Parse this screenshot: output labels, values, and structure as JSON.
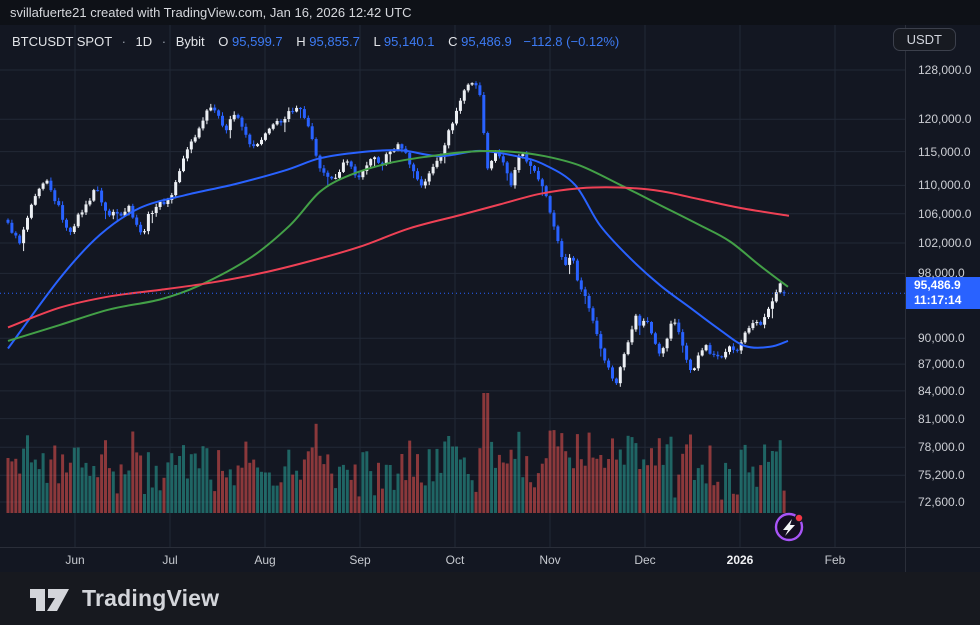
{
  "header": {
    "attribution": "svillafuerte21 created with TradingView.com, Jan 16, 2026 12:42 UTC"
  },
  "legend": {
    "symbol": "BTCUSDT SPOT",
    "separator": "·",
    "interval": "1D",
    "exchange": "Bybit",
    "o_label": "O",
    "o_value": "95,599.7",
    "h_label": "H",
    "h_value": "95,855.7",
    "l_label": "L",
    "l_value": "95,140.1",
    "c_label": "C",
    "c_value": "95,486.9",
    "change": "−112.8 (−0.12%)"
  },
  "toolbar": {
    "currency_button": "USDT"
  },
  "price_scale": {
    "current": {
      "price": "95,486.9",
      "countdown": "11:17:14"
    },
    "ticks": [
      {
        "value": 128000,
        "label": "128,000.0"
      },
      {
        "value": 120000,
        "label": "120,000.0"
      },
      {
        "value": 115000,
        "label": "115,000.0"
      },
      {
        "value": 110000,
        "label": "110,000.0"
      },
      {
        "value": 106000,
        "label": "106,000.0"
      },
      {
        "value": 102000,
        "label": "102,000.0"
      },
      {
        "value": 98000,
        "label": "98,000.0"
      },
      {
        "value": 90000,
        "label": "90,000.0"
      },
      {
        "value": 87000,
        "label": "87,000.0"
      },
      {
        "value": 84000,
        "label": "84,000.0"
      },
      {
        "value": 81000,
        "label": "81,000.0"
      },
      {
        "value": 78000,
        "label": "78,000.0"
      },
      {
        "value": 75200,
        "label": "75,200.0"
      },
      {
        "value": 72600,
        "label": "72,600.0"
      }
    ]
  },
  "time_scale": {
    "months": [
      {
        "label": "Jun"
      },
      {
        "label": "Jul"
      },
      {
        "label": "Aug"
      },
      {
        "label": "Sep"
      },
      {
        "label": "Oct"
      },
      {
        "label": "Nov"
      },
      {
        "label": "Dec"
      },
      {
        "label": "2026",
        "emphasis": true
      },
      {
        "label": "Feb"
      }
    ]
  },
  "footer": {
    "brand": "TradingView"
  },
  "colors": {
    "candle_up": "#eceff4",
    "candle_down": "#2962ff",
    "ma_fast": "#2962ff",
    "ma_mid": "#43a047",
    "ma_slow": "#ef4155",
    "volume_up": "rgba(42,166,154,0.55)",
    "volume_down": "rgba(239,83,80,0.55)",
    "grid": "#222836",
    "price_line": "#2962ff",
    "label_bg": "#2962ff"
  },
  "chart_data": {
    "type": "candlestick",
    "symbol": "BTCUSDT",
    "market": "SPOT",
    "exchange": "Bybit",
    "interval": "1D",
    "quote_currency": "USDT",
    "scale": "logarithmic",
    "current_ohlc": {
      "open": 95599.7,
      "high": 95855.7,
      "low": 95140.1,
      "close": 95486.9,
      "change": -112.8,
      "change_pct": -0.12
    },
    "price_line": {
      "value": 95486.9,
      "style": "dotted"
    },
    "countdown_to_bar_close": "11:17:14",
    "y_axis_ticks": [
      128000,
      120000,
      115000,
      110000,
      106000,
      102000,
      98000,
      90000,
      87000,
      84000,
      81000,
      78000,
      75200,
      72600
    ],
    "x_axis_months": [
      "Jun",
      "Jul",
      "Aug",
      "Sep",
      "Oct",
      "Nov",
      "Dec",
      "2026",
      "Feb"
    ],
    "price_path_thousands": [
      [
        8,
        104.5
      ],
      [
        14,
        103.2
      ],
      [
        20,
        101.8
      ],
      [
        26,
        104.8
      ],
      [
        33,
        107.5
      ],
      [
        40,
        109.5
      ],
      [
        47,
        110.5
      ],
      [
        53,
        108.5
      ],
      [
        60,
        106.5
      ],
      [
        68,
        103.2
      ],
      [
        74,
        104.5
      ],
      [
        80,
        106
      ],
      [
        88,
        107.5
      ],
      [
        95,
        109.8
      ],
      [
        101,
        108
      ],
      [
        108,
        105.5
      ],
      [
        115,
        106.5
      ],
      [
        122,
        106
      ],
      [
        129,
        107
      ],
      [
        136,
        104.8
      ],
      [
        142,
        102.8
      ],
      [
        148,
        105.5
      ],
      [
        155,
        107
      ],
      [
        162,
        107.5
      ],
      [
        170,
        108
      ],
      [
        177,
        111
      ],
      [
        184,
        114
      ],
      [
        191,
        116.5
      ],
      [
        198,
        118
      ],
      [
        205,
        121
      ],
      [
        212,
        122.5
      ],
      [
        219,
        120
      ],
      [
        226,
        118.5
      ],
      [
        233,
        121
      ],
      [
        240,
        119.5
      ],
      [
        247,
        117
      ],
      [
        254,
        115.5
      ],
      [
        261,
        116.5
      ],
      [
        268,
        118
      ],
      [
        275,
        120
      ],
      [
        282,
        119
      ],
      [
        289,
        121
      ],
      [
        296,
        122.2
      ],
      [
        303,
        121
      ],
      [
        310,
        118
      ],
      [
        317,
        113.5
      ],
      [
        324,
        111.5
      ],
      [
        331,
        110.5
      ],
      [
        338,
        112
      ],
      [
        345,
        113.5
      ],
      [
        352,
        112.5
      ],
      [
        359,
        111
      ],
      [
        366,
        113
      ],
      [
        373,
        114
      ],
      [
        380,
        113
      ],
      [
        387,
        114.5
      ],
      [
        394,
        115.5
      ],
      [
        401,
        116
      ],
      [
        408,
        114
      ],
      [
        415,
        111.5
      ],
      [
        422,
        110
      ],
      [
        429,
        111.5
      ],
      [
        436,
        113.5
      ],
      [
        443,
        115.5
      ],
      [
        450,
        118.5
      ],
      [
        457,
        121.5
      ],
      [
        464,
        124.5
      ],
      [
        470,
        126.3
      ],
      [
        476,
        125.2
      ],
      [
        481,
        124
      ],
      [
        486,
        112.5
      ],
      [
        491,
        113.5
      ],
      [
        496,
        115.2
      ],
      [
        501,
        114
      ],
      [
        506,
        112
      ],
      [
        511,
        110
      ],
      [
        516,
        112.5
      ],
      [
        521,
        115
      ],
      [
        526,
        114
      ],
      [
        531,
        112.5
      ],
      [
        536,
        111.5
      ],
      [
        541,
        110.5
      ],
      [
        546,
        108.8
      ],
      [
        551,
        106
      ],
      [
        556,
        103
      ],
      [
        561,
        100.5
      ],
      [
        566,
        99
      ],
      [
        571,
        100.8
      ],
      [
        576,
        98
      ],
      [
        581,
        96
      ],
      [
        586,
        95
      ],
      [
        591,
        93
      ],
      [
        596,
        91
      ],
      [
        601,
        88.8
      ],
      [
        606,
        87.3
      ],
      [
        611,
        85.8
      ],
      [
        616,
        84.8
      ],
      [
        621,
        86.8
      ],
      [
        626,
        89
      ],
      [
        631,
        91
      ],
      [
        636,
        92.6
      ],
      [
        641,
        91.4
      ],
      [
        646,
        92.5
      ],
      [
        651,
        91
      ],
      [
        656,
        89.4
      ],
      [
        661,
        88
      ],
      [
        666,
        89.6
      ],
      [
        671,
        91.6
      ],
      [
        676,
        92
      ],
      [
        681,
        90
      ],
      [
        686,
        87.5
      ],
      [
        691,
        86.3
      ],
      [
        696,
        87
      ],
      [
        701,
        88.6
      ],
      [
        706,
        89
      ],
      [
        711,
        88
      ],
      [
        716,
        88.6
      ],
      [
        721,
        87.5
      ],
      [
        726,
        88.6
      ],
      [
        731,
        89
      ],
      [
        736,
        88.3
      ],
      [
        741,
        89.6
      ],
      [
        746,
        90.6
      ],
      [
        751,
        91.6
      ],
      [
        756,
        92
      ],
      [
        761,
        91.4
      ],
      [
        766,
        92.6
      ],
      [
        771,
        94
      ],
      [
        776,
        95.6
      ],
      [
        781,
        97.2
      ],
      [
        784,
        95.49
      ]
    ],
    "moving_averages": [
      {
        "name": "ma-fast-blue",
        "color": "#2962ff",
        "points": [
          [
            8,
            88.8
          ],
          [
            60,
            97.4
          ],
          [
            100,
            103.1
          ],
          [
            140,
            106.8
          ],
          [
            185,
            108.6
          ],
          [
            235,
            110.2
          ],
          [
            285,
            112.2
          ],
          [
            320,
            114.0
          ],
          [
            360,
            114.9
          ],
          [
            400,
            115.2
          ],
          [
            440,
            114.3
          ],
          [
            480,
            115.1
          ],
          [
            520,
            114.2
          ],
          [
            545,
            113.0
          ],
          [
            575,
            110.1
          ],
          [
            600,
            104.4
          ],
          [
            630,
            100.0
          ],
          [
            660,
            96.5
          ],
          [
            690,
            93.7
          ],
          [
            720,
            91.0
          ],
          [
            745,
            89.1
          ],
          [
            770,
            89.0
          ],
          [
            788,
            89.7
          ]
        ]
      },
      {
        "name": "ma-mid-green",
        "color": "#43a047",
        "points": [
          [
            8,
            89.7
          ],
          [
            60,
            91.6
          ],
          [
            110,
            93.5
          ],
          [
            160,
            94.7
          ],
          [
            200,
            96.5
          ],
          [
            250,
            100.0
          ],
          [
            290,
            104.4
          ],
          [
            320,
            109.1
          ],
          [
            350,
            111.5
          ],
          [
            390,
            113.3
          ],
          [
            430,
            114.3
          ],
          [
            470,
            115.0
          ],
          [
            510,
            115.0
          ],
          [
            545,
            114.3
          ],
          [
            580,
            112.9
          ],
          [
            620,
            110.1
          ],
          [
            660,
            107.2
          ],
          [
            700,
            104.4
          ],
          [
            730,
            102.2
          ],
          [
            760,
            99.0
          ],
          [
            788,
            96.3
          ]
        ]
      },
      {
        "name": "ma-slow-red",
        "color": "#ef4155",
        "points": [
          [
            8,
            91.3
          ],
          [
            60,
            93.7
          ],
          [
            110,
            95.1
          ],
          [
            160,
            95.9
          ],
          [
            210,
            96.8
          ],
          [
            260,
            98.0
          ],
          [
            310,
            99.6
          ],
          [
            360,
            101.5
          ],
          [
            410,
            104.0
          ],
          [
            460,
            105.8
          ],
          [
            500,
            107.3
          ],
          [
            540,
            108.8
          ],
          [
            580,
            109.6
          ],
          [
            620,
            109.7
          ],
          [
            660,
            109.2
          ],
          [
            700,
            108.0
          ],
          [
            740,
            106.8
          ],
          [
            789,
            105.7
          ]
        ]
      }
    ]
  }
}
